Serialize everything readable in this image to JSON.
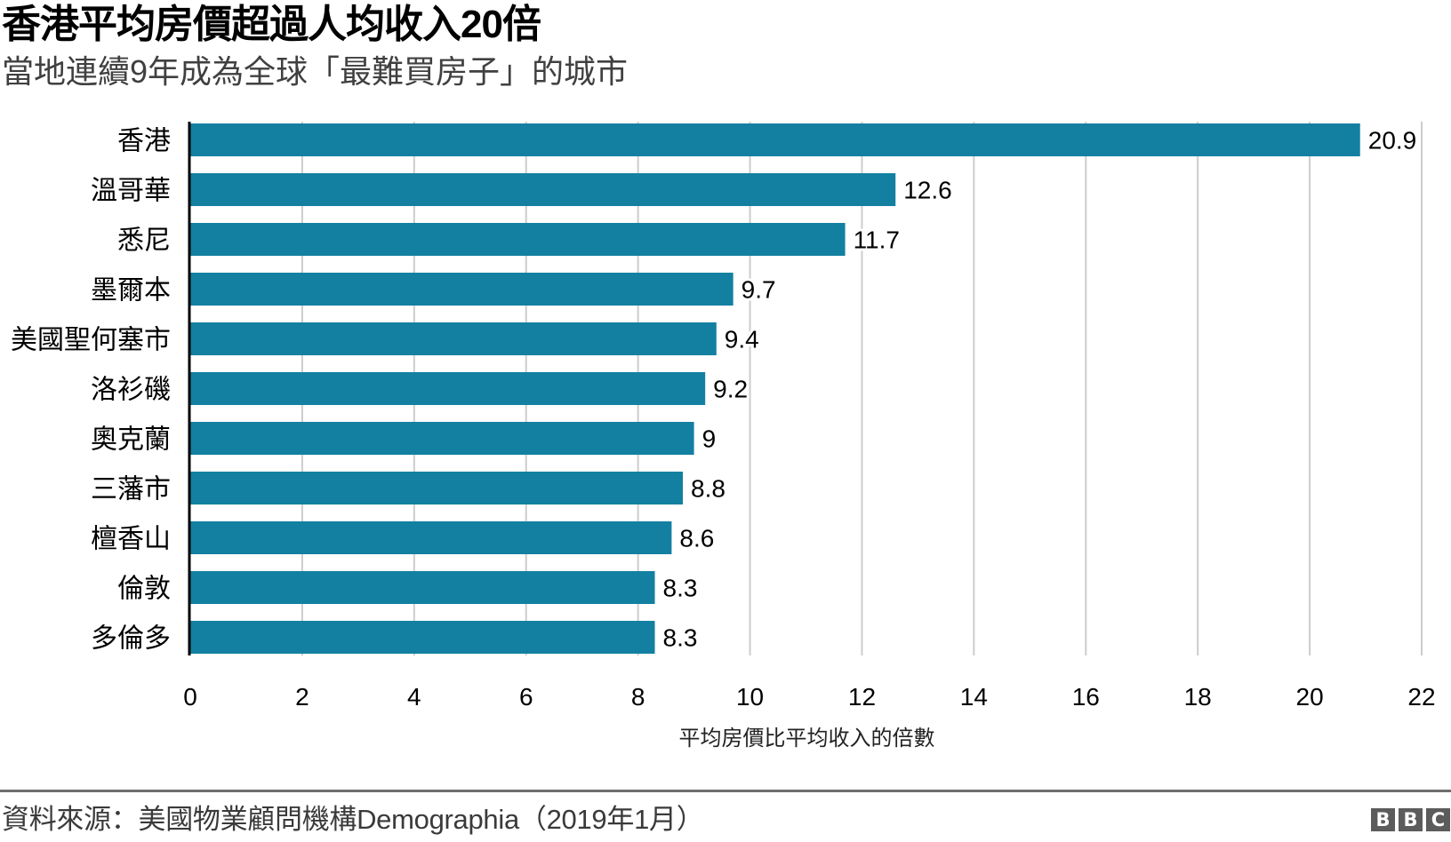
{
  "header": {
    "title": "香港平均房價超過人均收入20倍",
    "subtitle": "當地連續9年成為全球「最難買房子」的城市"
  },
  "chart_data": {
    "type": "bar",
    "orientation": "horizontal",
    "title": "香港平均房價超過人均收入20倍",
    "subtitle": "當地連續9年成為全球「最難買房子」的城市",
    "categories": [
      "香港",
      "溫哥華",
      "悉尼",
      "墨爾本",
      "美國聖何塞市",
      "洛衫磯",
      "奧克蘭",
      "三藩市",
      "檀香山",
      "倫敦",
      "多倫多"
    ],
    "values": [
      20.9,
      12.6,
      11.7,
      9.7,
      9.4,
      9.2,
      9,
      8.8,
      8.6,
      8.3,
      8.3
    ],
    "value_labels": [
      "20.9",
      "12.6",
      "11.7",
      "9.7",
      "9.4",
      "9.2",
      "9",
      "8.8",
      "8.6",
      "8.3",
      "8.3"
    ],
    "xlabel": "平均房價比平均收入的倍數",
    "ylabel": "",
    "xlim": [
      0,
      22
    ],
    "xticks": [
      0,
      2,
      4,
      6,
      8,
      10,
      12,
      14,
      16,
      18,
      20,
      22
    ],
    "grid": true,
    "legend": "none",
    "colors": {
      "bar": "#1380A1",
      "grid": "#cccccc",
      "axis": "#000000"
    }
  },
  "footer": {
    "source": "資料來源：美國物業顧問機構Demographia（2019年1月）",
    "logo": [
      "B",
      "B",
      "C"
    ]
  }
}
